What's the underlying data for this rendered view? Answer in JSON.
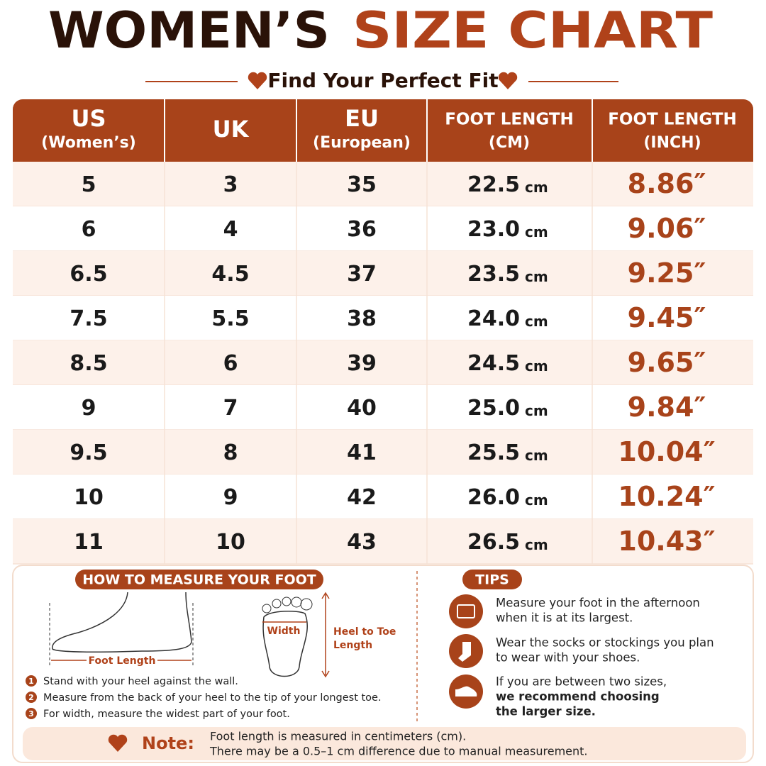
{
  "title": {
    "part1": "WOMEN’S",
    "part2": "SIZE CHART"
  },
  "subtitle": "Find Your Perfect Fit",
  "table": {
    "headers": [
      [
        "US",
        "(Women’s)"
      ],
      [
        "UK"
      ],
      [
        "EU",
        "(European)"
      ],
      [
        "FOOT LENGTH",
        "(CM)"
      ],
      [
        "FOOT LENGTH",
        "(INCH)"
      ]
    ],
    "rows": [
      [
        "5",
        "3",
        "35",
        "22.5",
        "cm",
        "8.86″"
      ],
      [
        "6",
        "4",
        "36",
        "23.0",
        "cm",
        "9.06″"
      ],
      [
        "6.5",
        "4.5",
        "37",
        "23.5",
        "cm",
        "9.25″"
      ],
      [
        "7.5",
        "5.5",
        "38",
        "24.0",
        "cm",
        "9.45″"
      ],
      [
        "8.5",
        "6",
        "39",
        "24.5",
        "cm",
        "9.65″"
      ],
      [
        "9",
        "7",
        "40",
        "25.0",
        "cm",
        "9.84″"
      ],
      [
        "9.5",
        "8",
        "41",
        "25.5",
        "cm",
        "10.04″"
      ],
      [
        "10",
        "9",
        "42",
        "26.0",
        "cm",
        "10.24″"
      ],
      [
        "11",
        "10",
        "43",
        "26.5",
        "cm",
        "10.43″"
      ]
    ]
  },
  "measure": {
    "title": "HOW TO MEASURE YOUR FOOT",
    "foot_length_label": "Foot Length",
    "width_label": "Width",
    "heel_to_toe_label": [
      "Heel to Toe",
      "Length"
    ],
    "steps": [
      {
        "number": "1",
        "text": "Stand with your heel against the wall."
      },
      {
        "number": "2",
        "text": "Measure from the back of your heel to the tip of your longest toe."
      },
      {
        "number": "3",
        "text": "For width, measure the widest part of your foot."
      }
    ]
  },
  "tips": {
    "title": "TIPS",
    "items": [
      {
        "lines": [
          "Measure your foot in the afternoon",
          "when it is at its largest."
        ],
        "bold_lines": []
      },
      {
        "lines": [
          "Wear the socks or stockings you plan",
          "to wear with your shoes."
        ],
        "bold_lines": []
      },
      {
        "lines": [
          "If you are between two sizes,"
        ],
        "bold_lines": [
          "we recommend choosing",
          "the larger size."
        ]
      }
    ]
  },
  "note": {
    "label": "Note:",
    "lines": [
      "Foot length is measured in centimeters (cm).",
      "There may be a 0.5–1 cm difference due to manual measurement."
    ]
  }
}
